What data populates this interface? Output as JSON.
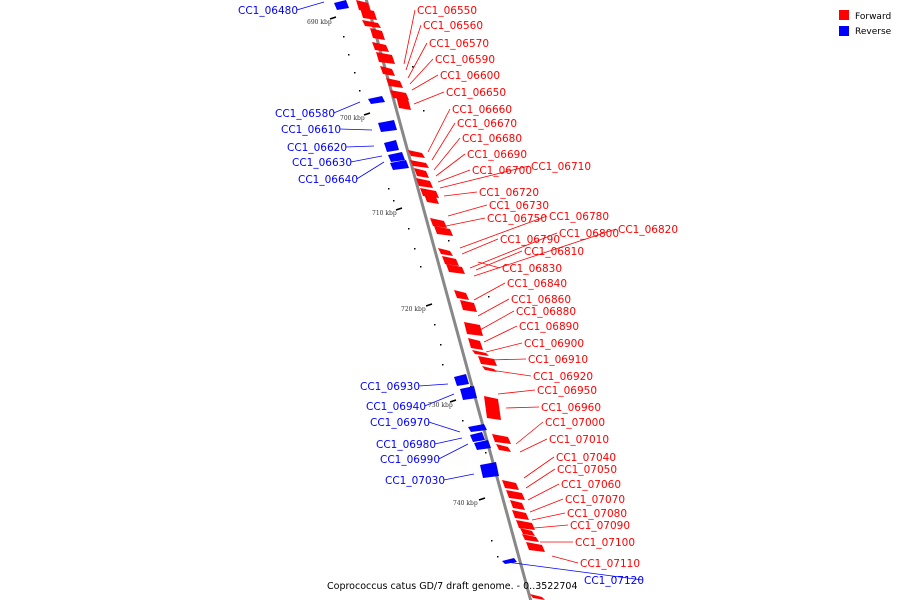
{
  "legend": {
    "forward_label": "Forward",
    "reverse_label": "Reverse",
    "forward_color": "#ff0000",
    "reverse_color": "#0000ff"
  },
  "caption": "Coprococcus catus GD/7 draft genome. - 0..3522704",
  "tick_labels": [
    "690 kbp",
    "700 kbp",
    "710 kbp",
    "720 kbp",
    "730 kbp",
    "740 kbp"
  ],
  "forward_genes": [
    "CC1_06550",
    "CC1_06560",
    "CC1_06570",
    "CC1_06590",
    "CC1_06600",
    "CC1_06650",
    "CC1_06660",
    "CC1_06670",
    "CC1_06680",
    "CC1_06690",
    "CC1_06700",
    "CC1_06710",
    "CC1_06720",
    "CC1_06730",
    "CC1_06750",
    "CC1_06780",
    "CC1_06790",
    "CC1_06800",
    "CC1_06820",
    "CC1_06810",
    "CC1_06830",
    "CC1_06840",
    "CC1_06860",
    "CC1_06880",
    "CC1_06890",
    "CC1_06900",
    "CC1_06910",
    "CC1_06920",
    "CC1_06950",
    "CC1_06960",
    "CC1_07000",
    "CC1_07010",
    "CC1_07040",
    "CC1_07050",
    "CC1_07060",
    "CC1_07070",
    "CC1_07080",
    "CC1_07090",
    "CC1_07100",
    "CC1_07110"
  ],
  "reverse_genes": [
    "CC1_06480",
    "CC1_06580",
    "CC1_06610",
    "CC1_06620",
    "CC1_06630",
    "CC1_06640",
    "CC1_06930",
    "CC1_06940",
    "CC1_06970",
    "CC1_06980",
    "CC1_06990",
    "CC1_07030",
    "CC1_07120"
  ]
}
